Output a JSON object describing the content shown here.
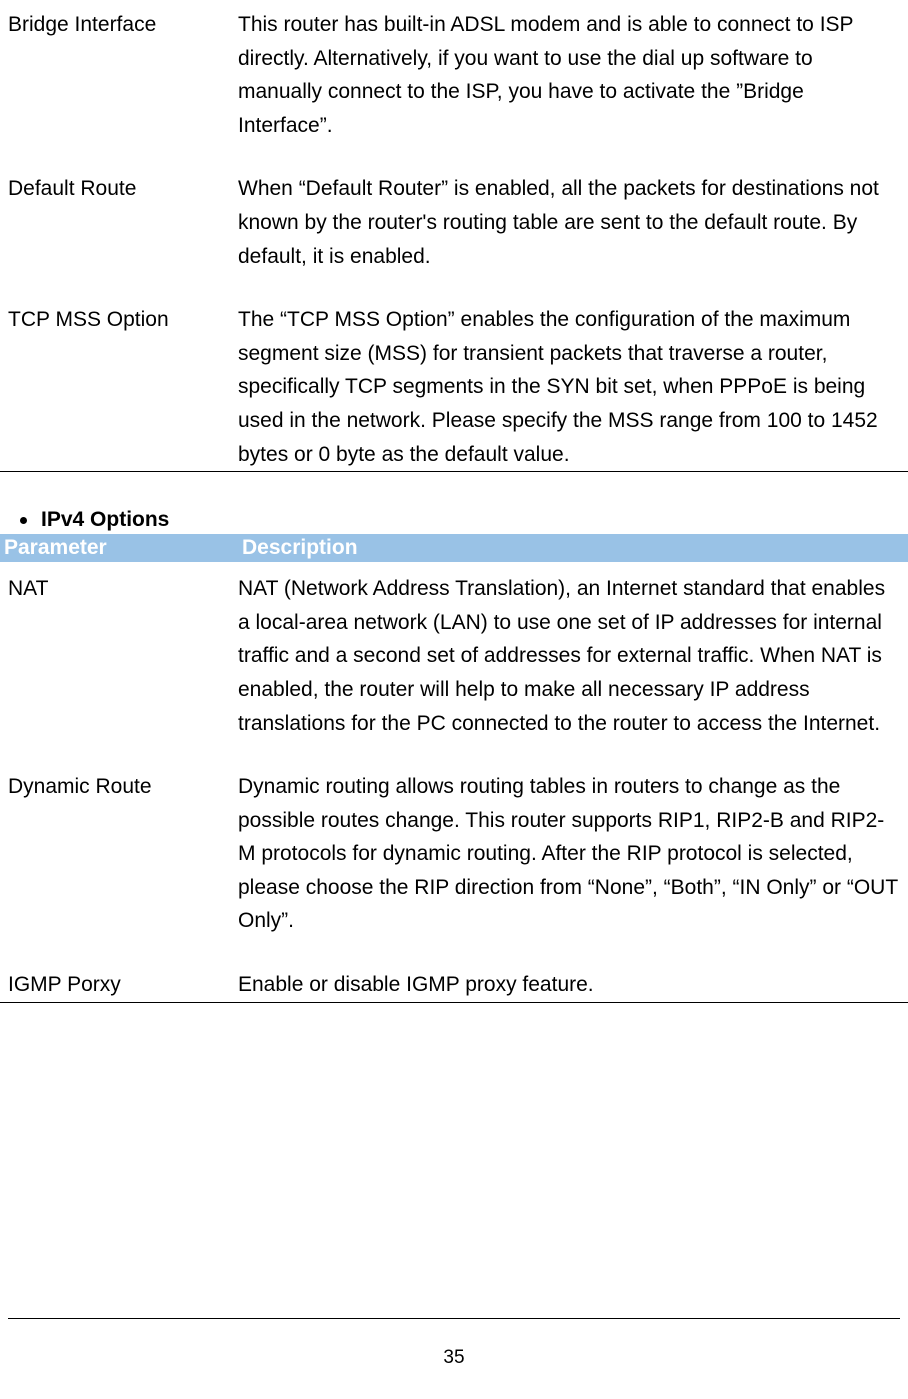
{
  "table1": {
    "rows": [
      {
        "param": "Bridge Interface",
        "desc": "This router has built-in ADSL modem and is able to connect to ISP directly. Alternatively, if you want to use the dial up software to manually connect to the ISP, you have to activate the ”Bridge Interface”."
      },
      {
        "param": "Default Route",
        "desc": "When “Default Router” is enabled, all the packets for destinations not known by the router's routing table are sent to the default route.  By default, it is enabled."
      },
      {
        "param": "TCP MSS Option",
        "desc": "The “TCP MSS Option” enables the configuration of the maximum segment size (MSS) for transient packets that traverse a router, specifically TCP segments in the SYN bit set, when PPPoE is being used in the network. Please specify the MSS range from 100 to 1452 bytes or 0 byte as the default value."
      }
    ]
  },
  "section_title": "IPv4 Options",
  "table2": {
    "header_param": "Parameter",
    "header_desc": "Description",
    "rows": [
      {
        "param": "NAT",
        "desc": "NAT (Network Address Translation), an Internet standard that enables a local-area network (LAN) to use one set of IP addresses for internal traffic and a second set of addresses for external traffic. When NAT is enabled, the router will help to make all necessary IP address translations for the PC connected to the router to access the Internet."
      },
      {
        "param": "Dynamic Route",
        "desc": "Dynamic routing allows routing tables in routers to change as the possible routes change. This router supports RIP1, RIP2-B and RIP2-M protocols for dynamic routing. After the RIP protocol is selected, please choose the RIP direction from “None”, “Both”, “IN Only” or “OUT Only”."
      },
      {
        "param": "IGMP Porxy",
        "desc": "Enable or disable IGMP proxy feature."
      }
    ]
  },
  "page_number": "35",
  "colors": {
    "header_bg": "#99c2e6",
    "header_text": "#ffffff",
    "body_text": "#000000",
    "background": "#ffffff"
  }
}
